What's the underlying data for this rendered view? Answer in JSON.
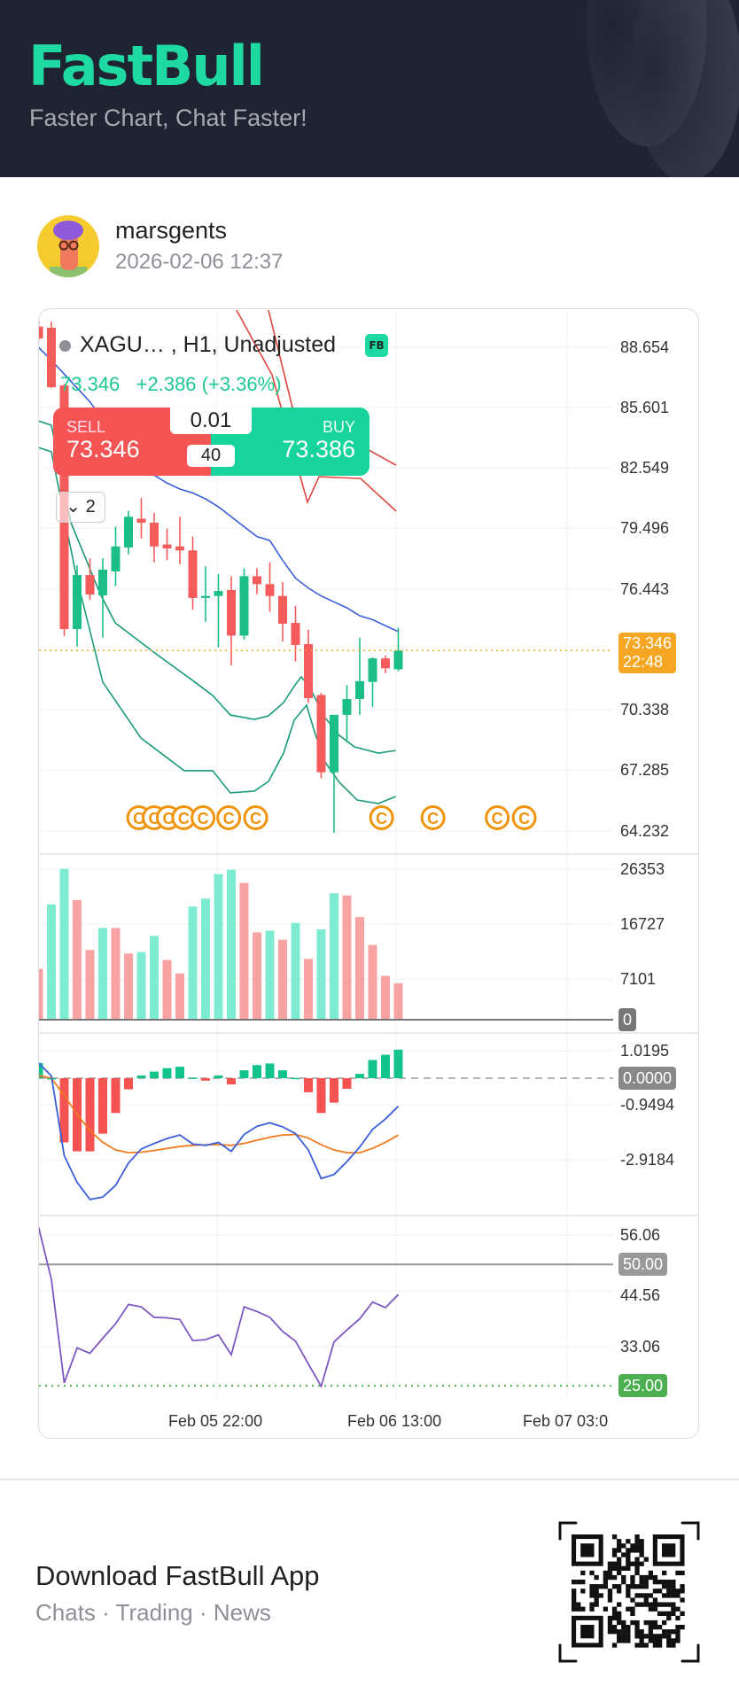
{
  "header": {
    "logo": "FastBull",
    "tagline": "Faster Chart, Chat Faster!"
  },
  "post": {
    "username": "marsgents",
    "date": "2026-02-06 12:37"
  },
  "chart": {
    "symbol": "XAGU…   , H1, Unadjusted",
    "fb_badge": "FB",
    "last_price": "73.346",
    "change": "+2.386 (+3.36%)",
    "trade": {
      "sell_label": "SELL",
      "sell_price": "73.346",
      "buy_label": "BUY",
      "buy_price": "73.386",
      "lot": "0.01",
      "spread": "40"
    },
    "collapse_label": "2",
    "price_axis": [
      "88.654",
      "85.601",
      "82.549",
      "79.496",
      "76.443",
      "70.338",
      "67.285",
      "64.232"
    ],
    "last_badge": {
      "price": "73.346",
      "countdown": "22:48"
    },
    "volume_axis": [
      "26353",
      "16727",
      "7101"
    ],
    "volume_zero": "0",
    "macd_axis": [
      "1.0195",
      "-0.9494",
      "-2.9184"
    ],
    "macd_zero": "0.0000",
    "rsi_axis": [
      "56.06",
      "44.56",
      "33.06"
    ],
    "rsi_mid": "50.00",
    "rsi_low": "25.00",
    "x_labels": [
      "Feb 05 22:00",
      "Feb 06 13:00",
      "Feb 07 03:0"
    ]
  },
  "chart_data": {
    "type": "candlestick",
    "interval": "H1",
    "price_range": [
      64.232,
      88.654
    ],
    "candles": [
      [
        89.7,
        90.0,
        88.9,
        89.1
      ],
      [
        89.64,
        89.95,
        86.6,
        86.64
      ],
      [
        86.73,
        86.8,
        74.07,
        74.43
      ],
      [
        74.43,
        77.65,
        73.54,
        77.16
      ],
      [
        77.16,
        78.0,
        75.9,
        76.17
      ],
      [
        76.13,
        78.0,
        74.0,
        77.43
      ],
      [
        77.34,
        79.6,
        76.6,
        78.6
      ],
      [
        78.55,
        80.4,
        78.2,
        80.1
      ],
      [
        80.0,
        81.05,
        79.0,
        79.8
      ],
      [
        79.8,
        80.3,
        77.8,
        78.6
      ],
      [
        78.7,
        79.5,
        77.9,
        78.5
      ],
      [
        78.6,
        80.1,
        77.7,
        78.4
      ],
      [
        78.4,
        79.1,
        75.4,
        76.0
      ],
      [
        76.0,
        77.6,
        74.8,
        76.1
      ],
      [
        76.1,
        77.2,
        73.5,
        76.35
      ],
      [
        76.4,
        77.1,
        72.6,
        74.1
      ],
      [
        74.1,
        77.5,
        73.9,
        77.1
      ],
      [
        77.1,
        77.5,
        76.2,
        76.7
      ],
      [
        76.7,
        77.8,
        75.3,
        76.1
      ],
      [
        76.1,
        76.8,
        73.8,
        74.7
      ],
      [
        74.74,
        75.6,
        72.8,
        73.63
      ],
      [
        73.67,
        74.4,
        70.7,
        70.94
      ],
      [
        71.1,
        71.2,
        66.9,
        67.2
      ],
      [
        67.2,
        70.1,
        64.15,
        70.1
      ],
      [
        70.1,
        71.6,
        68.7,
        70.9
      ],
      [
        70.9,
        74.0,
        70.1,
        71.8
      ],
      [
        71.76,
        73.0,
        70.5,
        72.95
      ],
      [
        72.95,
        73.1,
        72.2,
        72.45
      ],
      [
        72.4,
        74.5,
        72.3,
        73.346
      ]
    ],
    "overlays": [
      {
        "name": "ma-blue",
        "color": "#3a5fd9",
        "points": [
          [
            -1,
            88.65
          ],
          [
            0,
            88.0
          ],
          [
            1,
            87.3
          ],
          [
            2,
            86.6
          ],
          [
            3,
            85.9
          ],
          [
            4,
            85.0
          ],
          [
            5,
            84.1
          ],
          [
            6,
            83.3
          ],
          [
            7,
            82.7
          ],
          [
            8,
            82.2
          ],
          [
            9,
            81.8
          ],
          [
            10,
            81.5
          ],
          [
            11,
            81.3
          ],
          [
            12,
            81.0
          ],
          [
            13,
            80.6
          ],
          [
            14,
            80.1
          ],
          [
            15,
            79.6
          ],
          [
            16,
            79.1
          ],
          [
            17,
            78.9
          ],
          [
            18,
            77.9
          ],
          [
            19,
            77.0
          ],
          [
            20,
            76.5
          ],
          [
            21,
            76.1
          ],
          [
            22,
            75.8
          ],
          [
            23,
            75.5
          ],
          [
            24,
            75.1
          ],
          [
            25,
            74.9
          ],
          [
            26,
            74.6
          ],
          [
            27,
            74.3
          ]
        ]
      },
      {
        "name": "band-upper-green",
        "color": "#1a9a7a",
        "points": [
          [
            -1.03,
            84.94
          ],
          [
            0,
            84.72
          ],
          [
            1.52,
            79.8
          ],
          [
            3.79,
            76.22
          ],
          [
            4.97,
            74.74
          ],
          [
            8.14,
            73.18
          ],
          [
            10.9,
            71.88
          ],
          [
            12.55,
            71.08
          ],
          [
            13.93,
            70.09
          ],
          [
            15.8,
            69.87
          ],
          [
            16.9,
            70.05
          ],
          [
            18.07,
            70.72
          ],
          [
            18.97,
            71.61
          ],
          [
            19.45,
            72.02
          ],
          [
            20.14,
            71.44
          ],
          [
            21.3,
            69.96
          ],
          [
            22.4,
            69.07
          ],
          [
            23.6,
            68.48
          ],
          [
            25.45,
            68.17
          ],
          [
            26.8,
            68.3
          ]
        ]
      },
      {
        "name": "band-lower-green",
        "color": "#1a9a7a",
        "points": [
          [
            -1.03,
            83.6
          ],
          [
            0,
            83.38
          ],
          [
            1.93,
            77.12
          ],
          [
            4.0,
            71.75
          ],
          [
            6.97,
            68.93
          ],
          [
            10.34,
            67.28
          ],
          [
            12.55,
            67.28
          ],
          [
            13.93,
            66.16
          ],
          [
            15.8,
            66.25
          ],
          [
            16.9,
            66.74
          ],
          [
            18.07,
            68.17
          ],
          [
            18.9,
            69.83
          ],
          [
            19.86,
            70.59
          ],
          [
            20.5,
            69.2
          ],
          [
            21.3,
            67.72
          ],
          [
            22.4,
            66.7
          ],
          [
            23.8,
            65.8
          ],
          [
            25.45,
            65.62
          ],
          [
            26.8,
            65.98
          ]
        ]
      },
      {
        "name": "red-line-1",
        "color": "#e0473f",
        "points": [
          [
            14.41,
            90.53
          ],
          [
            17.17,
            87.27
          ],
          [
            19.93,
            80.83
          ],
          [
            20.83,
            82.12
          ],
          [
            24.07,
            82.03
          ],
          [
            26.83,
            80.38
          ]
        ]
      },
      {
        "name": "red-line-2",
        "color": "#e0473f",
        "points": [
          [
            16.9,
            90.53
          ],
          [
            18.76,
            85.61
          ],
          [
            26.83,
            82.7
          ]
        ]
      }
    ],
    "events": [
      6.8,
      8.0,
      9.1,
      10.3,
      11.8,
      13.8,
      15.9,
      25.7,
      29.7,
      34.7,
      36.8
    ],
    "event_label": "C",
    "volume": {
      "range": [
        0,
        26353
      ],
      "values": [
        8904,
        20177,
        26404,
        20949,
        12198,
        16058,
        16058,
        11581,
        11838,
        14669,
        10448,
        8081,
        19816,
        21206,
        25478,
        26250,
        23934,
        15286,
        15595,
        14000,
        16933,
        10654,
        15801,
        22132,
        21720,
        17963,
        13073,
        7669,
        6382
      ],
      "direction": [
        "d",
        "u",
        "u",
        "d",
        "d",
        "u",
        "d",
        "d",
        "u",
        "u",
        "d",
        "d",
        "u",
        "u",
        "u",
        "u",
        "d",
        "d",
        "u",
        "d",
        "u",
        "d",
        "u",
        "u",
        "d",
        "d",
        "d",
        "d",
        "d"
      ]
    },
    "macd": {
      "histogram": [
        0.56,
        0.0,
        -2.36,
        -2.69,
        -2.69,
        -2.04,
        -1.28,
        -0.41,
        0.1,
        0.24,
        0.37,
        0.42,
        0.02,
        -0.09,
        0.1,
        -0.23,
        0.29,
        0.48,
        0.54,
        0.29,
        0.01,
        -0.52,
        -1.28,
        -0.9,
        -0.39,
        0.16,
        0.67,
        0.86,
        1.05
      ],
      "macd": [
        0.56,
        0.08,
        -2.85,
        -3.83,
        -4.46,
        -4.37,
        -3.94,
        -3.12,
        -2.6,
        -2.4,
        -2.22,
        -2.09,
        -2.42,
        -2.47,
        -2.36,
        -2.69,
        -2.07,
        -1.77,
        -1.64,
        -1.79,
        -2.04,
        -2.64,
        -3.69,
        -3.54,
        -3.07,
        -2.53,
        -1.88,
        -1.5,
        -1.03
      ],
      "signal": [
        0.1,
        0.0,
        -0.63,
        -1.33,
        -1.93,
        -2.36,
        -2.64,
        -2.74,
        -2.72,
        -2.66,
        -2.58,
        -2.51,
        -2.47,
        -2.45,
        -2.44,
        -2.47,
        -2.4,
        -2.28,
        -2.17,
        -2.09,
        -2.07,
        -2.2,
        -2.45,
        -2.64,
        -2.74,
        -2.74,
        -2.58,
        -2.36,
        -2.09
      ]
    },
    "rsi": {
      "values": [
        57.75,
        46.9,
        25.6,
        32.8,
        31.7,
        34.8,
        37.8,
        41.75,
        41.25,
        39.1,
        39.0,
        38.65,
        34.3,
        34.5,
        35.5,
        31.4,
        41.25,
        40.3,
        39.1,
        36.2,
        34.2,
        29.5,
        24.9,
        34.05,
        36.5,
        38.8,
        42.25,
        41.1,
        43.8
      ],
      "levels": [
        50,
        25
      ]
    },
    "colors": {
      "up": "#1bbf85",
      "down": "#f45b5b",
      "vol_up": "#7eecd2",
      "vol_down": "#f8a3a3",
      "macd_line": "#3a5fd9",
      "signal_line": "#f07c22",
      "rsi_line": "#7e57c2",
      "last_price": "#f5a623",
      "event": "#f0940e"
    }
  },
  "footer": {
    "title": "Download FastBull App",
    "subtitle": "Chats · Trading · News"
  }
}
